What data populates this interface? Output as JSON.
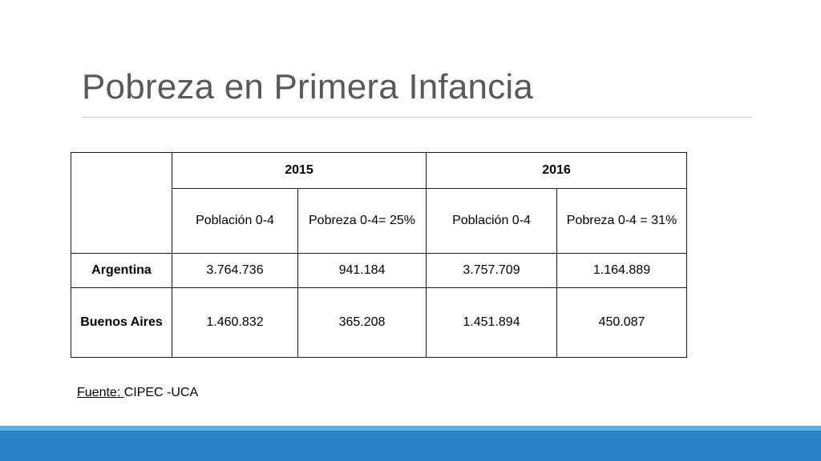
{
  "slide": {
    "title": "Pobreza en Primera Infancia"
  },
  "table": {
    "years": [
      "2015",
      "2016"
    ],
    "subheaders": [
      "Población 0-4",
      "Pobreza 0-4= 25%",
      "Población 0-4",
      "Pobreza 0-4 = 31%"
    ],
    "rows": [
      {
        "label": "Argentina",
        "values": [
          "3.764.736",
          "941.184",
          "3.757.709",
          "1.164.889"
        ]
      },
      {
        "label": "Buenos Aires",
        "values": [
          "1.460.832",
          "365.208",
          "1.451.894",
          "450.087"
        ]
      }
    ]
  },
  "source": {
    "label": "Fuente: ",
    "text": "CIPEC -UCA"
  },
  "colors": {
    "title": "#595959",
    "band_light": "#5fb0e8",
    "band_dark": "#2a83c7"
  }
}
